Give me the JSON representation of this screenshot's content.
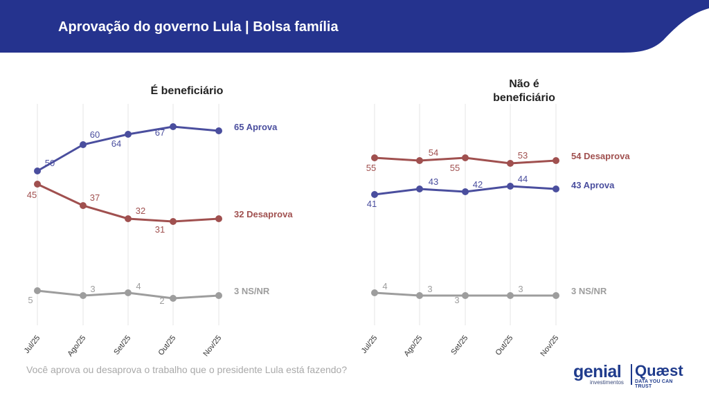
{
  "header": {
    "title": "Aprovação do governo Lula | Bolsa família"
  },
  "colors": {
    "header_bg": "#25338e",
    "aprova": "#4a4e9e",
    "desaprova": "#a0504f",
    "nsnr": "#9d9d9d",
    "grid": "#e6e6e6"
  },
  "chart_data": [
    {
      "type": "line",
      "title": "É beneficiário",
      "categories": [
        "Jul/25",
        "Ago/25",
        "Set/25",
        "Out/25",
        "Nov/25"
      ],
      "series": [
        {
          "name": "Aprova",
          "values": [
            50,
            60,
            64,
            67,
            65
          ],
          "end_label": "65 Aprova"
        },
        {
          "name": "Desaprova",
          "values": [
            45,
            37,
            32,
            31,
            32
          ],
          "end_label": "32 Desaprova"
        },
        {
          "name": "NS/NR",
          "values": [
            5,
            3,
            4,
            2,
            3
          ],
          "end_label": "3 NS/NR"
        }
      ]
    },
    {
      "type": "line",
      "title": "Não é beneficiário",
      "categories": [
        "Jul/25",
        "Ago/25",
        "Set/25",
        "Out/25",
        "Nov/25"
      ],
      "series": [
        {
          "name": "Desaprova",
          "values": [
            55,
            54,
            55,
            53,
            54
          ],
          "end_label": "54 Desaprova"
        },
        {
          "name": "Aprova",
          "values": [
            41,
            43,
            42,
            44,
            43
          ],
          "end_label": "43 Aprova"
        },
        {
          "name": "NS/NR",
          "values": [
            4,
            3,
            3,
            3,
            3
          ],
          "end_label": "3 NS/NR"
        }
      ]
    }
  ],
  "footer": {
    "question": "Você aprova ou desaprova o trabalho que o presidente Lula está fazendo?",
    "logo_genial": "genial",
    "logo_genial_sub": "investimentos",
    "logo_quaest": "Quæst",
    "logo_quaest_sub": "DATA YOU CAN TRUST"
  }
}
